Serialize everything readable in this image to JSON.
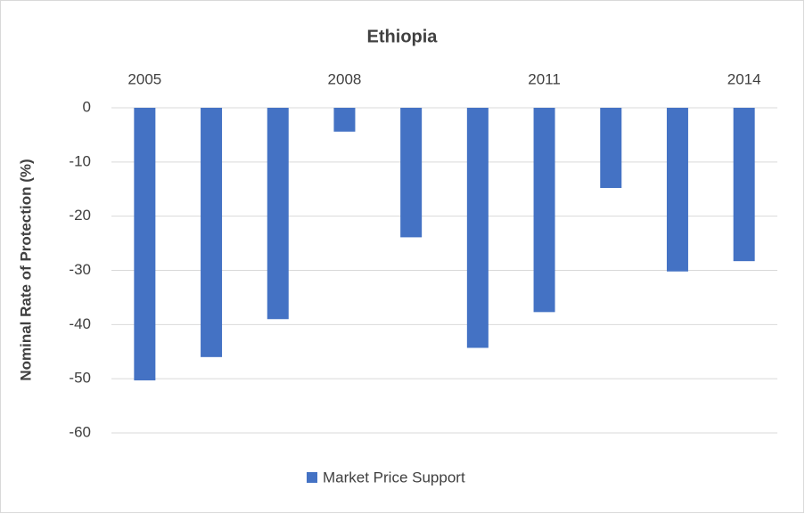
{
  "chart_data": {
    "type": "bar",
    "title": "Ethiopia",
    "y_label": "Nominal Rate of Protection (%)",
    "categories": [
      "2005",
      null,
      null,
      "2008",
      null,
      null,
      "2011",
      null,
      null,
      "2014"
    ],
    "series": [
      {
        "name": "Market Price Support",
        "color": "#4472c4",
        "values": [
          -50.3,
          -46,
          -39,
          -4.4,
          -23.9,
          -44.3,
          -37.7,
          -14.8,
          -30.2,
          -28.3
        ]
      }
    ],
    "ylim": [
      -60,
      0
    ],
    "yticks": [
      0,
      -10,
      -20,
      -30,
      -40,
      -50,
      -60
    ],
    "grid": true,
    "legend": "bottom"
  }
}
